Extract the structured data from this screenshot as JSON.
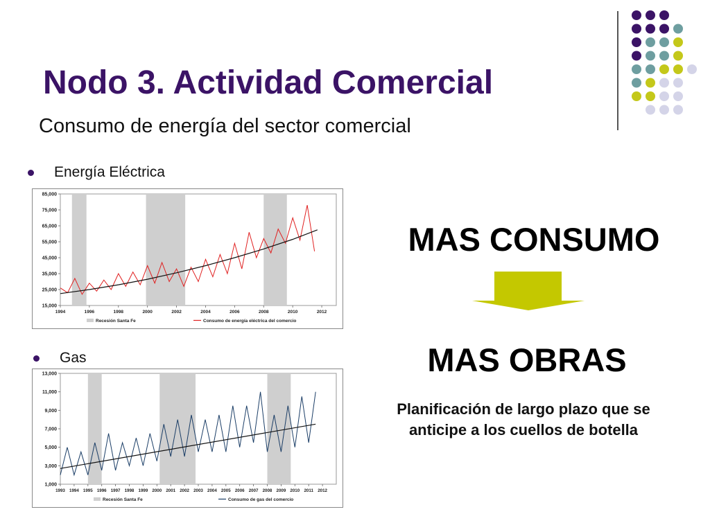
{
  "slide": {
    "title": "Nodo 3. Actividad Comercial",
    "subtitle": "Consumo de energía del sector comercial",
    "bullet1": "Energía Eléctrica",
    "bullet2": "Gas",
    "mas_consumo": "MAS CONSUMO",
    "mas_obras": "MAS OBRAS",
    "planificacion": "Planificación de largo plazo que se anticipe a los cuellos de botella",
    "colors": {
      "title": "#3b1366",
      "arrow": "#c4c800",
      "purple": "#3b1366",
      "teal": "#6e9ea0",
      "olive": "#c4c81a",
      "lavender": "#d4d4e8"
    }
  },
  "decor_dots": [
    [
      "purple",
      "purple",
      "purple",
      null
    ],
    [
      "purple",
      "purple",
      "purple",
      "teal"
    ],
    [
      "purple",
      "teal",
      "teal",
      "olive"
    ],
    [
      "purple",
      "teal",
      "teal",
      "olive"
    ],
    [
      "teal",
      "teal",
      "olive",
      "olive",
      "lavender"
    ],
    [
      "teal",
      "olive",
      "lavender",
      "lavender"
    ],
    [
      "olive",
      "olive",
      "lavender",
      "lavender"
    ],
    [
      null,
      "lavender",
      "lavender",
      "lavender"
    ]
  ],
  "chart_data": [
    {
      "type": "line",
      "title": "",
      "ylim": [
        15000,
        85000
      ],
      "xlim": [
        1994,
        2013
      ],
      "yticks": [
        "15,000",
        "25,000",
        "35,000",
        "45,000",
        "55,000",
        "65,000",
        "75,000",
        "85,000"
      ],
      "ytick_values": [
        15000,
        25000,
        35000,
        45000,
        55000,
        65000,
        75000,
        85000
      ],
      "xticks": [
        "1994",
        "1996",
        "1998",
        "2000",
        "2002",
        "2004",
        "2006",
        "2008",
        "2010",
        "2012"
      ],
      "xtick_values": [
        1994,
        1996,
        1998,
        2000,
        2002,
        2004,
        2006,
        2008,
        2010,
        2012
      ],
      "recessions": [
        [
          1994.8,
          1995.8
        ],
        [
          1999.9,
          2002.6
        ],
        [
          2008.0,
          2009.6
        ]
      ],
      "legend": [
        "Recesión Santa Fe",
        "Consumo de energía eléctrica del comercio"
      ],
      "series": [
        {
          "name": "Consumo de energía eléctrica del comercio",
          "color": "#e02020",
          "x": [
            1994.0,
            1994.5,
            1995.0,
            1995.5,
            1996.0,
            1996.5,
            1997.0,
            1997.5,
            1998.0,
            1998.5,
            1999.0,
            1999.5,
            2000.0,
            2000.5,
            2001.0,
            2001.5,
            2002.0,
            2002.5,
            2003.0,
            2003.5,
            2004.0,
            2004.5,
            2005.0,
            2005.5,
            2006.0,
            2006.5,
            2007.0,
            2007.5,
            2008.0,
            2008.5,
            2009.0,
            2009.5,
            2010.0,
            2010.5,
            2011.0,
            2011.5
          ],
          "values": [
            26000,
            23000,
            32000,
            22000,
            29000,
            24000,
            31000,
            25000,
            35000,
            27000,
            36000,
            28000,
            40000,
            29000,
            42000,
            30000,
            38000,
            27000,
            39000,
            30000,
            44000,
            33000,
            47000,
            35000,
            54000,
            38000,
            61000,
            45000,
            57000,
            48000,
            63000,
            54000,
            70000,
            56000,
            78000,
            49000
          ]
        },
        {
          "name": "trend",
          "color": "#111111",
          "x": [
            1994.0,
            1996.0,
            1998.0,
            2000.0,
            2002.0,
            2004.0,
            2006.0,
            2008.0,
            2010.0,
            2011.7
          ],
          "values": [
            22500,
            25000,
            28000,
            31500,
            35500,
            40000,
            45000,
            50500,
            56500,
            62500
          ]
        }
      ]
    },
    {
      "type": "line",
      "title": "",
      "ylim": [
        1000,
        13000
      ],
      "xlim": [
        1993,
        2013
      ],
      "yticks": [
        "1,000",
        "3,000",
        "5,000",
        "7,000",
        "9,000",
        "11,000",
        "13,000"
      ],
      "ytick_values": [
        1000,
        3000,
        5000,
        7000,
        9000,
        11000,
        13000
      ],
      "xticks": [
        "1993",
        "1994",
        "1995",
        "1996",
        "1997",
        "1998",
        "1999",
        "2000",
        "2001",
        "2002",
        "2003",
        "2004",
        "2005",
        "2006",
        "2007",
        "2008",
        "2009",
        "2010",
        "2011",
        "2012"
      ],
      "xtick_values": [
        1993,
        1994,
        1995,
        1996,
        1997,
        1998,
        1999,
        2000,
        2001,
        2002,
        2003,
        2004,
        2005,
        2006,
        2007,
        2008,
        2009,
        2010,
        2011,
        2012
      ],
      "recessions": [
        [
          1995.0,
          1996.0
        ],
        [
          2000.2,
          2002.8
        ],
        [
          2008.0,
          2009.7
        ]
      ],
      "legend": [
        "Recesión Santa Fe",
        "Consumo de gas del comercio"
      ],
      "series": [
        {
          "name": "Consumo de gas del comercio",
          "color": "#1a3d66",
          "x": [
            1993.0,
            1993.5,
            1994.0,
            1994.5,
            1995.0,
            1995.5,
            1996.0,
            1996.5,
            1997.0,
            1997.5,
            1998.0,
            1998.5,
            1999.0,
            1999.5,
            2000.0,
            2000.5,
            2001.0,
            2001.5,
            2002.0,
            2002.5,
            2003.0,
            2003.5,
            2004.0,
            2004.5,
            2005.0,
            2005.5,
            2006.0,
            2006.5,
            2007.0,
            2007.5,
            2008.0,
            2008.5,
            2009.0,
            2009.5,
            2010.0,
            2010.5,
            2011.0,
            2011.5
          ],
          "values": [
            2000,
            5000,
            2000,
            4500,
            2000,
            5500,
            2500,
            6500,
            2500,
            5500,
            3000,
            6000,
            3000,
            6500,
            3500,
            7500,
            4000,
            8000,
            4000,
            8500,
            4500,
            8000,
            4500,
            8500,
            4500,
            9500,
            5000,
            9500,
            5500,
            11000,
            4500,
            8500,
            4500,
            9500,
            5000,
            10500,
            5500,
            11000
          ]
        },
        {
          "name": "trend",
          "color": "#111111",
          "x": [
            1993.0,
            2011.5
          ],
          "values": [
            2700,
            7500
          ]
        }
      ]
    }
  ]
}
